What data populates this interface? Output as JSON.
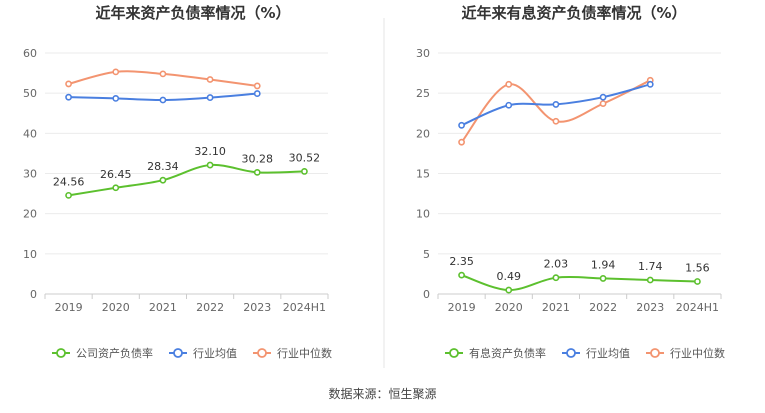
{
  "source_label": "数据来源：恒生聚源",
  "chart_data": [
    {
      "type": "line",
      "title": "近年来资产负债率情况（%）",
      "categories": [
        "2019",
        "2020",
        "2021",
        "2022",
        "2023",
        "2024H1"
      ],
      "ylim": [
        0,
        60
      ],
      "yticks": [
        "0",
        "10",
        "20",
        "30",
        "40",
        "50",
        "60"
      ],
      "grid": true,
      "legend_position": "bottom",
      "series": [
        {
          "name": "公司资产负债率",
          "color": "#5cc02e",
          "values": [
            24.56,
            26.45,
            28.34,
            32.1,
            30.28,
            30.52
          ],
          "labels": [
            "24.56",
            "26.45",
            "28.34",
            "32.10",
            "30.28",
            "30.52"
          ]
        },
        {
          "name": "行业均值",
          "color": "#4a7fe0",
          "values": [
            49.0,
            48.7,
            48.3,
            48.9,
            49.9,
            null
          ]
        },
        {
          "name": "行业中位数",
          "color": "#f39470",
          "values": [
            52.3,
            55.3,
            54.8,
            53.4,
            51.8,
            null
          ]
        }
      ]
    },
    {
      "type": "line",
      "title": "近年来有息资产负债率情况（%）",
      "categories": [
        "2019",
        "2020",
        "2021",
        "2022",
        "2023",
        "2024H1"
      ],
      "ylim": [
        0,
        30
      ],
      "yticks": [
        "0",
        "5",
        "10",
        "15",
        "20",
        "25",
        "30"
      ],
      "grid": true,
      "legend_position": "bottom",
      "series": [
        {
          "name": "有息资产负债率",
          "color": "#5cc02e",
          "values": [
            2.35,
            0.49,
            2.03,
            1.94,
            1.74,
            1.56
          ],
          "labels": [
            "2.35",
            "0.49",
            "2.03",
            "1.94",
            "1.74",
            "1.56"
          ]
        },
        {
          "name": "行业均值",
          "color": "#4a7fe0",
          "values": [
            21.0,
            23.5,
            23.6,
            24.5,
            26.1,
            null
          ]
        },
        {
          "name": "行业中位数",
          "color": "#f39470",
          "values": [
            18.9,
            26.1,
            21.5,
            23.7,
            26.6,
            null
          ]
        }
      ]
    }
  ]
}
